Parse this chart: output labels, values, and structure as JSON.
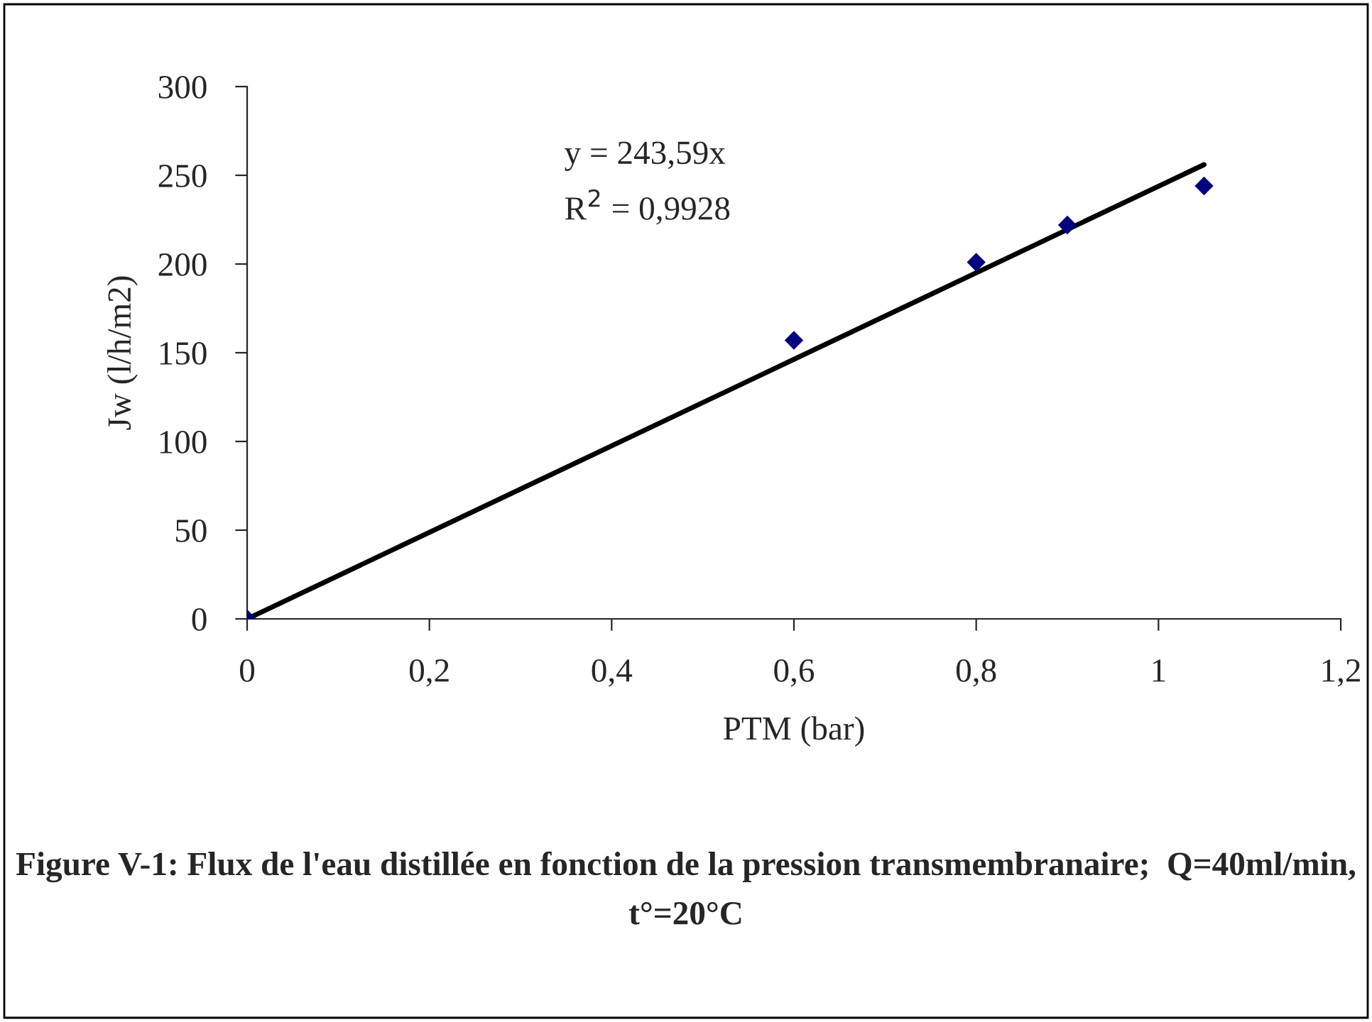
{
  "chart_data": {
    "type": "scatter",
    "title": "Figure V-1: Flux de l'eau distillée en fonction de la pression transmembranaire;  Q=40ml/min, t°=20°C",
    "xlabel": "PTM (bar)",
    "ylabel": "Jw (l/h/m2)",
    "x": [
      0,
      0.6,
      0.8,
      0.9,
      1.05
    ],
    "series": [
      {
        "color": "#000080",
        "marker": "diamond",
        "values": [
          0,
          157,
          201,
          222,
          244
        ]
      },
      {
        "type": "line",
        "color": "#000000",
        "x": [
          0,
          1.05
        ],
        "values": [
          0,
          256
        ]
      }
    ],
    "annotations": [
      "y = 243,59x",
      "R$^{2}$ = 0,9928"
    ],
    "xlim": [
      0,
      1.2
    ],
    "xticks": [
      {
        "value": 0,
        "label": "0"
      },
      {
        "value": 0.2,
        "label": "0,2"
      },
      {
        "value": 0.4,
        "label": "0,4"
      },
      {
        "value": 0.6,
        "label": "0,6"
      },
      {
        "value": 0.8,
        "label": "0,8"
      },
      {
        "value": 1,
        "label": "1"
      },
      {
        "value": 1.2,
        "label": "1,2"
      }
    ],
    "ylim": [
      0,
      300
    ],
    "yticks": [
      0,
      50,
      100,
      150,
      200,
      250,
      300
    ],
    "grid": false,
    "legend": false
  }
}
